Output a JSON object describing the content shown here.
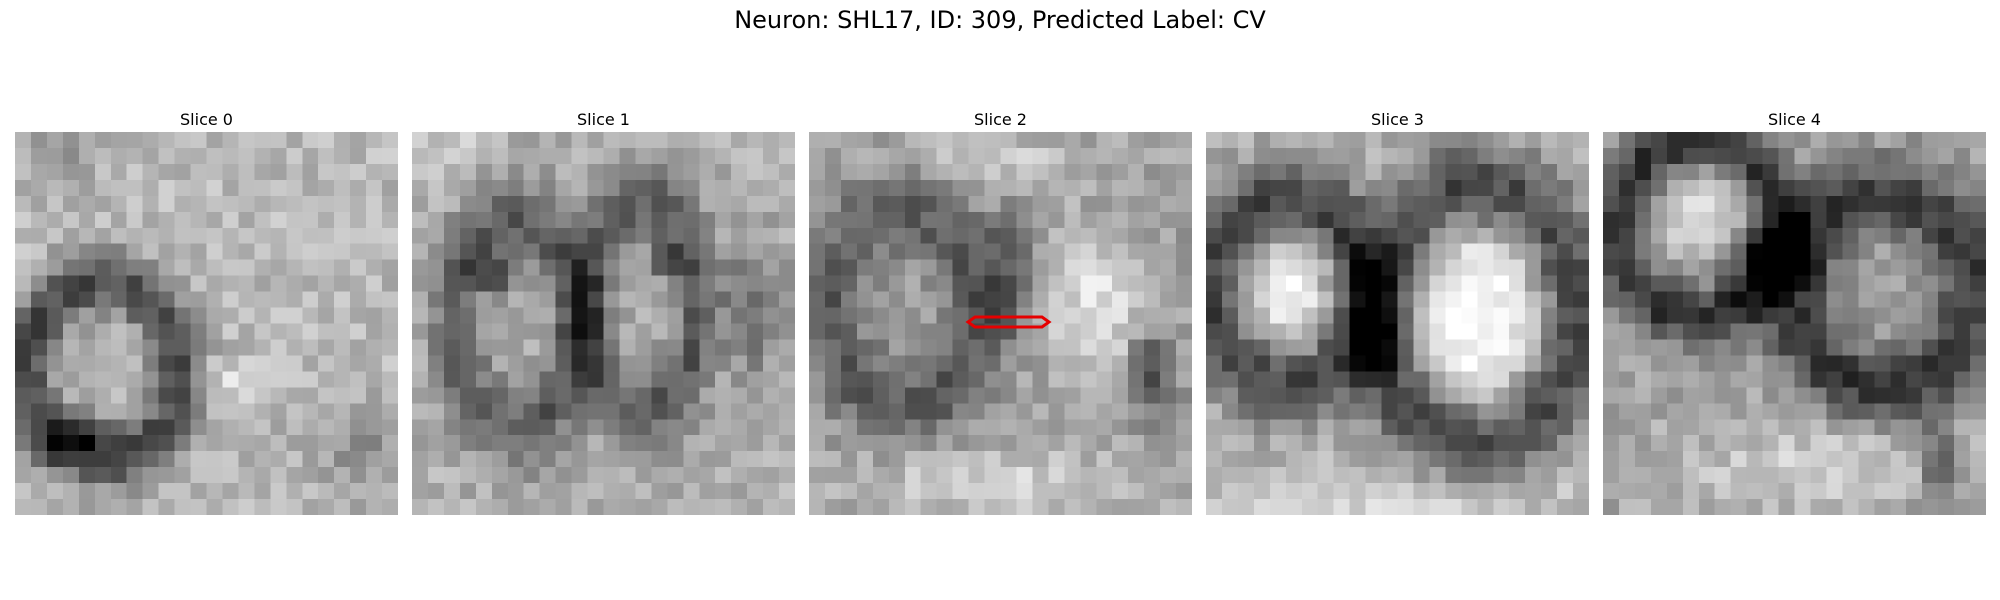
{
  "figure": {
    "title": "Neuron: SHL17, ID: 309, Predicted Label: CV"
  },
  "panels": [
    {
      "title": "Slice 0"
    },
    {
      "title": "Slice 1"
    },
    {
      "title": "Slice 2"
    },
    {
      "title": "Slice 3"
    },
    {
      "title": "Slice 4"
    }
  ],
  "colors": {
    "background": "#ffffff",
    "colormap": "grayscale",
    "marker": "#e60000"
  }
}
